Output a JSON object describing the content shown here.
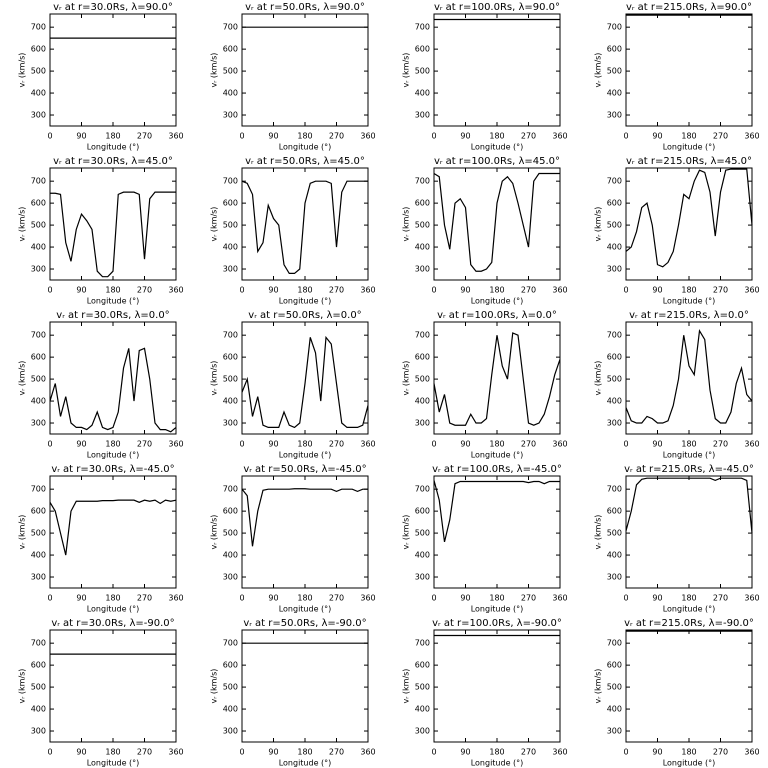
{
  "chart_data": [
    {
      "type": "line",
      "title": "vᵣ at r=30.0Rs, λ=90.0°",
      "x_label": "Longitude (°)",
      "y_label": "vᵣ (km/s)",
      "color": "#000000",
      "xlim": [
        0,
        360
      ],
      "ylim": [
        250,
        760
      ],
      "xticks": [
        0,
        90,
        180,
        270,
        360
      ],
      "yticks": [
        300,
        400,
        500,
        600,
        700
      ],
      "x": [
        0,
        360
      ],
      "values": [
        650,
        650
      ]
    },
    {
      "type": "line",
      "title": "vᵣ at r=50.0Rs, λ=90.0°",
      "x_label": "Longitude (°)",
      "y_label": "vᵣ (km/s)",
      "color": "#000000",
      "xlim": [
        0,
        360
      ],
      "ylim": [
        250,
        760
      ],
      "xticks": [
        0,
        90,
        180,
        270,
        360
      ],
      "yticks": [
        300,
        400,
        500,
        600,
        700
      ],
      "x": [
        0,
        360
      ],
      "values": [
        700,
        700
      ]
    },
    {
      "type": "line",
      "title": "vᵣ at r=100.0Rs, λ=90.0°",
      "x_label": "Longitude (°)",
      "y_label": "vᵣ (km/s)",
      "color": "#000000",
      "xlim": [
        0,
        360
      ],
      "ylim": [
        250,
        760
      ],
      "xticks": [
        0,
        90,
        180,
        270,
        360
      ],
      "yticks": [
        300,
        400,
        500,
        600,
        700
      ],
      "x": [
        0,
        360
      ],
      "values": [
        735,
        735
      ]
    },
    {
      "type": "line",
      "title": "vᵣ at r=215.0Rs, λ=90.0°",
      "x_label": "Longitude (°)",
      "y_label": "vᵣ (km/s)",
      "color": "#000000",
      "xlim": [
        0,
        360
      ],
      "ylim": [
        250,
        760
      ],
      "xticks": [
        0,
        90,
        180,
        270,
        360
      ],
      "yticks": [
        300,
        400,
        500,
        600,
        700
      ],
      "x": [
        0,
        360
      ],
      "values": [
        755,
        755
      ]
    },
    {
      "type": "line",
      "title": "vᵣ at r=30.0Rs, λ=45.0°",
      "x_label": "Longitude (°)",
      "y_label": "vᵣ (km/s)",
      "color": "#000000",
      "xlim": [
        0,
        360
      ],
      "ylim": [
        250,
        760
      ],
      "xticks": [
        0,
        90,
        180,
        270,
        360
      ],
      "yticks": [
        300,
        400,
        500,
        600,
        700
      ],
      "x": [
        0,
        15,
        30,
        45,
        60,
        75,
        90,
        105,
        120,
        135,
        150,
        165,
        180,
        195,
        210,
        225,
        240,
        255,
        270,
        285,
        300,
        315,
        330,
        345,
        360
      ],
      "values": [
        645,
        645,
        640,
        420,
        335,
        480,
        550,
        520,
        480,
        290,
        265,
        265,
        290,
        640,
        650,
        650,
        650,
        640,
        345,
        620,
        650,
        650,
        650,
        650,
        650
      ]
    },
    {
      "type": "line",
      "title": "vᵣ at r=50.0Rs, λ=45.0°",
      "x_label": "Longitude (°)",
      "y_label": "vᵣ (km/s)",
      "color": "#000000",
      "xlim": [
        0,
        360
      ],
      "ylim": [
        250,
        760
      ],
      "xticks": [
        0,
        90,
        180,
        270,
        360
      ],
      "yticks": [
        300,
        400,
        500,
        600,
        700
      ],
      "x": [
        0,
        15,
        30,
        45,
        60,
        75,
        90,
        105,
        120,
        135,
        150,
        165,
        180,
        195,
        210,
        225,
        240,
        255,
        270,
        285,
        300,
        315,
        330,
        345,
        360
      ],
      "values": [
        700,
        690,
        640,
        380,
        420,
        590,
        530,
        500,
        320,
        280,
        280,
        300,
        600,
        690,
        700,
        700,
        700,
        690,
        400,
        650,
        700,
        700,
        700,
        700,
        700
      ]
    },
    {
      "type": "line",
      "title": "vᵣ at r=100.0Rs, λ=45.0°",
      "x_label": "Longitude (°)",
      "y_label": "vᵣ (km/s)",
      "color": "#000000",
      "xlim": [
        0,
        360
      ],
      "ylim": [
        250,
        760
      ],
      "xticks": [
        0,
        90,
        180,
        270,
        360
      ],
      "yticks": [
        300,
        400,
        500,
        600,
        700
      ],
      "x": [
        0,
        15,
        30,
        45,
        60,
        75,
        90,
        105,
        120,
        135,
        150,
        165,
        180,
        195,
        210,
        225,
        240,
        255,
        270,
        285,
        300,
        315,
        330,
        345,
        360
      ],
      "values": [
        735,
        720,
        500,
        390,
        600,
        620,
        580,
        320,
        290,
        290,
        300,
        330,
        600,
        700,
        720,
        690,
        600,
        500,
        400,
        700,
        735,
        735,
        735,
        735,
        735
      ]
    },
    {
      "type": "line",
      "title": "vᵣ at r=215.0Rs, λ=45.0°",
      "x_label": "Longitude (°)",
      "y_label": "vᵣ (km/s)",
      "color": "#000000",
      "xlim": [
        0,
        360
      ],
      "ylim": [
        250,
        760
      ],
      "xticks": [
        0,
        90,
        180,
        270,
        360
      ],
      "yticks": [
        300,
        400,
        500,
        600,
        700
      ],
      "x": [
        0,
        15,
        30,
        45,
        60,
        75,
        90,
        105,
        120,
        135,
        150,
        165,
        180,
        195,
        210,
        225,
        240,
        255,
        270,
        285,
        300,
        315,
        330,
        345,
        360
      ],
      "values": [
        380,
        400,
        470,
        580,
        600,
        500,
        320,
        310,
        330,
        380,
        500,
        640,
        620,
        700,
        750,
        740,
        650,
        450,
        650,
        750,
        755,
        755,
        755,
        755,
        500
      ]
    },
    {
      "type": "line",
      "title": "vᵣ at r=30.0Rs, λ=0.0°",
      "x_label": "Longitude (°)",
      "y_label": "vᵣ (km/s)",
      "color": "#000000",
      "xlim": [
        0,
        360
      ],
      "ylim": [
        250,
        760
      ],
      "xticks": [
        0,
        90,
        180,
        270,
        360
      ],
      "yticks": [
        300,
        400,
        500,
        600,
        700
      ],
      "x": [
        0,
        15,
        30,
        45,
        60,
        75,
        90,
        105,
        120,
        135,
        150,
        165,
        180,
        195,
        210,
        225,
        240,
        255,
        270,
        285,
        300,
        315,
        330,
        345,
        360
      ],
      "values": [
        400,
        480,
        330,
        420,
        300,
        280,
        280,
        270,
        290,
        350,
        280,
        270,
        280,
        350,
        550,
        640,
        400,
        630,
        640,
        500,
        300,
        270,
        270,
        260,
        280
      ]
    },
    {
      "type": "line",
      "title": "vᵣ at r=50.0Rs, λ=0.0°",
      "x_label": "Longitude (°)",
      "y_label": "vᵣ (km/s)",
      "color": "#000000",
      "xlim": [
        0,
        360
      ],
      "ylim": [
        250,
        760
      ],
      "xticks": [
        0,
        90,
        180,
        270,
        360
      ],
      "yticks": [
        300,
        400,
        500,
        600,
        700
      ],
      "x": [
        0,
        15,
        30,
        45,
        60,
        75,
        90,
        105,
        120,
        135,
        150,
        165,
        180,
        195,
        210,
        225,
        240,
        255,
        270,
        285,
        300,
        315,
        330,
        345,
        360
      ],
      "values": [
        440,
        500,
        330,
        420,
        290,
        280,
        280,
        280,
        350,
        290,
        280,
        300,
        480,
        690,
        620,
        400,
        690,
        660,
        480,
        300,
        280,
        280,
        280,
        290,
        380
      ]
    },
    {
      "type": "line",
      "title": "vᵣ at r=100.0Rs, λ=0.0°",
      "x_label": "Longitude (°)",
      "y_label": "vᵣ (km/s)",
      "color": "#000000",
      "xlim": [
        0,
        360
      ],
      "ylim": [
        250,
        760
      ],
      "xticks": [
        0,
        90,
        180,
        270,
        360
      ],
      "yticks": [
        300,
        400,
        500,
        600,
        700
      ],
      "x": [
        0,
        15,
        30,
        45,
        60,
        75,
        90,
        105,
        120,
        135,
        150,
        165,
        180,
        195,
        210,
        225,
        240,
        255,
        270,
        285,
        300,
        315,
        330,
        345,
        360
      ],
      "values": [
        480,
        350,
        430,
        300,
        290,
        290,
        290,
        340,
        300,
        300,
        320,
        520,
        700,
        560,
        500,
        710,
        700,
        500,
        300,
        290,
        300,
        340,
        420,
        520,
        590
      ]
    },
    {
      "type": "line",
      "title": "vᵣ at r=215.0Rs, λ=0.0°",
      "x_label": "Longitude (°)",
      "y_label": "vᵣ (km/s)",
      "color": "#000000",
      "xlim": [
        0,
        360
      ],
      "ylim": [
        250,
        760
      ],
      "xticks": [
        0,
        90,
        180,
        270,
        360
      ],
      "yticks": [
        300,
        400,
        500,
        600,
        700
      ],
      "x": [
        0,
        15,
        30,
        45,
        60,
        75,
        90,
        105,
        120,
        135,
        150,
        165,
        180,
        195,
        210,
        225,
        240,
        255,
        270,
        285,
        300,
        315,
        330,
        345,
        360
      ],
      "values": [
        370,
        310,
        300,
        300,
        330,
        320,
        300,
        300,
        310,
        380,
        500,
        700,
        560,
        520,
        720,
        680,
        450,
        320,
        300,
        300,
        350,
        480,
        550,
        430,
        400
      ]
    },
    {
      "type": "line",
      "title": "vᵣ at r=30.0Rs, λ=-45.0°",
      "x_label": "Longitude (°)",
      "y_label": "vᵣ (km/s)",
      "color": "#000000",
      "xlim": [
        0,
        360
      ],
      "ylim": [
        250,
        760
      ],
      "xticks": [
        0,
        90,
        180,
        270,
        360
      ],
      "yticks": [
        300,
        400,
        500,
        600,
        700
      ],
      "x": [
        0,
        15,
        30,
        45,
        60,
        75,
        90,
        105,
        120,
        135,
        150,
        165,
        180,
        195,
        210,
        225,
        240,
        255,
        270,
        285,
        300,
        315,
        330,
        345,
        360
      ],
      "values": [
        640,
        600,
        500,
        400,
        600,
        645,
        645,
        645,
        645,
        645,
        648,
        648,
        648,
        650,
        650,
        650,
        650,
        640,
        650,
        645,
        650,
        635,
        650,
        645,
        650
      ]
    },
    {
      "type": "line",
      "title": "vᵣ at r=50.0Rs, λ=-45.0°",
      "x_label": "Longitude (°)",
      "y_label": "vᵣ (km/s)",
      "color": "#000000",
      "xlim": [
        0,
        360
      ],
      "ylim": [
        250,
        760
      ],
      "xticks": [
        0,
        90,
        180,
        270,
        360
      ],
      "yticks": [
        300,
        400,
        500,
        600,
        700
      ],
      "x": [
        0,
        15,
        30,
        45,
        60,
        75,
        90,
        105,
        120,
        135,
        150,
        165,
        180,
        195,
        210,
        225,
        240,
        255,
        270,
        285,
        300,
        315,
        330,
        345,
        360
      ],
      "values": [
        700,
        670,
        440,
        600,
        695,
        700,
        700,
        700,
        700,
        700,
        702,
        702,
        702,
        700,
        700,
        700,
        700,
        700,
        690,
        700,
        700,
        700,
        690,
        700,
        700
      ]
    },
    {
      "type": "line",
      "title": "vᵣ at r=100.0Rs, λ=-45.0°",
      "x_label": "Longitude (°)",
      "y_label": "vᵣ (km/s)",
      "color": "#000000",
      "xlim": [
        0,
        360
      ],
      "ylim": [
        250,
        760
      ],
      "xticks": [
        0,
        90,
        180,
        270,
        360
      ],
      "yticks": [
        300,
        400,
        500,
        600,
        700
      ],
      "x": [
        0,
        15,
        30,
        45,
        60,
        75,
        90,
        105,
        120,
        135,
        150,
        165,
        180,
        195,
        210,
        225,
        240,
        255,
        270,
        285,
        300,
        315,
        330,
        345,
        360
      ],
      "values": [
        740,
        650,
        460,
        560,
        725,
        735,
        735,
        735,
        735,
        735,
        735,
        735,
        735,
        735,
        735,
        735,
        735,
        735,
        730,
        735,
        735,
        725,
        735,
        735,
        735
      ]
    },
    {
      "type": "line",
      "title": "vᵣ at r=215.0Rs, λ=-45.0°",
      "x_label": "Longitude (°)",
      "y_label": "vᵣ (km/s)",
      "color": "#000000",
      "xlim": [
        0,
        360
      ],
      "ylim": [
        250,
        760
      ],
      "xticks": [
        0,
        90,
        180,
        270,
        360
      ],
      "yticks": [
        300,
        400,
        500,
        600,
        700
      ],
      "x": [
        0,
        15,
        30,
        45,
        60,
        75,
        90,
        105,
        120,
        135,
        150,
        165,
        180,
        195,
        210,
        225,
        240,
        255,
        270,
        285,
        300,
        315,
        330,
        345,
        360
      ],
      "values": [
        510,
        600,
        720,
        745,
        750,
        750,
        750,
        750,
        750,
        750,
        750,
        750,
        750,
        750,
        750,
        750,
        750,
        740,
        750,
        750,
        750,
        750,
        750,
        740,
        500
      ]
    },
    {
      "type": "line",
      "title": "vᵣ at r=30.0Rs, λ=-90.0°",
      "x_label": "Longitude (°)",
      "y_label": "vᵣ (km/s)",
      "color": "#000000",
      "xlim": [
        0,
        360
      ],
      "ylim": [
        250,
        760
      ],
      "xticks": [
        0,
        90,
        180,
        270,
        360
      ],
      "yticks": [
        300,
        400,
        500,
        600,
        700
      ],
      "x": [
        0,
        360
      ],
      "values": [
        650,
        650
      ]
    },
    {
      "type": "line",
      "title": "vᵣ at r=50.0Rs, λ=-90.0°",
      "x_label": "Longitude (°)",
      "y_label": "vᵣ (km/s)",
      "color": "#000000",
      "xlim": [
        0,
        360
      ],
      "ylim": [
        250,
        760
      ],
      "xticks": [
        0,
        90,
        180,
        270,
        360
      ],
      "yticks": [
        300,
        400,
        500,
        600,
        700
      ],
      "x": [
        0,
        360
      ],
      "values": [
        700,
        700
      ]
    },
    {
      "type": "line",
      "title": "vᵣ at r=100.0Rs, λ=-90.0°",
      "x_label": "Longitude (°)",
      "y_label": "vᵣ (km/s)",
      "color": "#000000",
      "xlim": [
        0,
        360
      ],
      "ylim": [
        250,
        760
      ],
      "xticks": [
        0,
        90,
        180,
        270,
        360
      ],
      "yticks": [
        300,
        400,
        500,
        600,
        700
      ],
      "x": [
        0,
        360
      ],
      "values": [
        735,
        735
      ]
    },
    {
      "type": "line",
      "title": "vᵣ at r=215.0Rs, λ=-90.0°",
      "x_label": "Longitude (°)",
      "y_label": "vᵣ (km/s)",
      "color": "#000000",
      "xlim": [
        0,
        360
      ],
      "ylim": [
        250,
        760
      ],
      "xticks": [
        0,
        90,
        180,
        270,
        360
      ],
      "yticks": [
        300,
        400,
        500,
        600,
        700
      ],
      "x": [
        0,
        360
      ],
      "values": [
        755,
        755
      ]
    }
  ]
}
